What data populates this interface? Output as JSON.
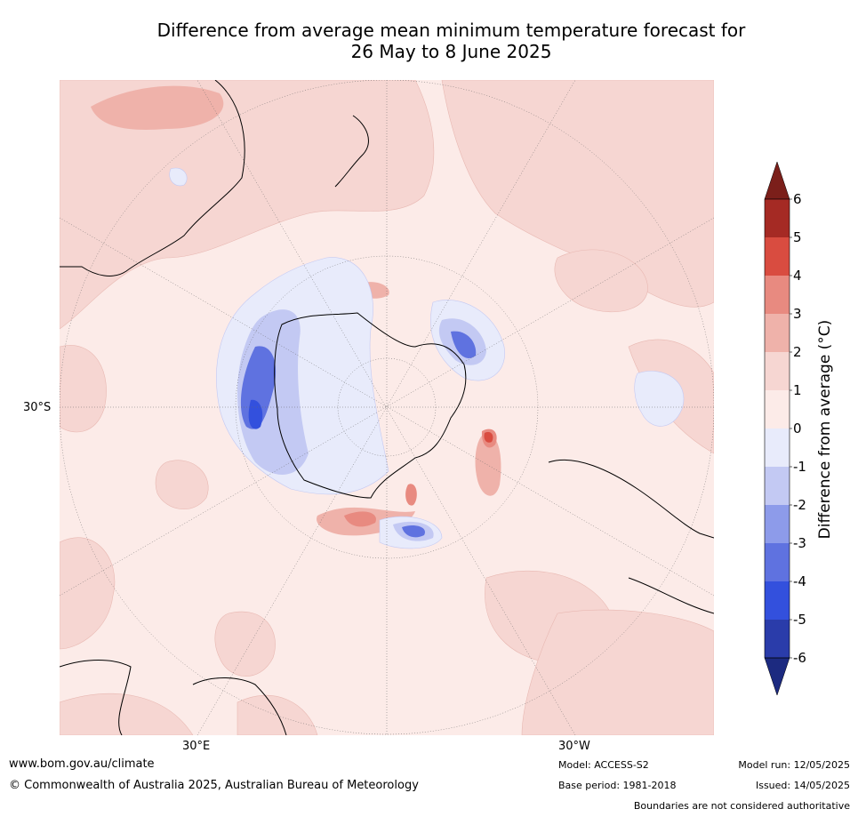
{
  "title": {
    "line1": "Difference from average mean minimum temperature forecast for",
    "line2": "26 May to 8 June 2025"
  },
  "map": {
    "projection": "south-polar stereographic",
    "labels": {
      "lat_30s": "30°S",
      "lon_30e": "30°E",
      "lon_30w": "30°W"
    }
  },
  "colorbar": {
    "title": "Difference from average (°C)",
    "ticks": [
      "6",
      "5",
      "4",
      "3",
      "2",
      "1",
      "0",
      "-1",
      "-2",
      "-3",
      "-4",
      "-5",
      "-6"
    ],
    "colors_top_to_bottom": [
      "#a52a24",
      "#d94c40",
      "#e88a80",
      "#efb2aa",
      "#f6d6d2",
      "#fcebe8",
      "#e8ebfb",
      "#c3c9f3",
      "#8d9bea",
      "#5f72e0",
      "#3350dd",
      "#2a3caa"
    ],
    "extend_max_color": "#7b1f1a",
    "extend_min_color": "#1c2a80"
  },
  "footer": {
    "url": "www.bom.gov.au/climate",
    "copyright": "© Commonwealth of Australia 2025, Australian Bureau of Meteorology",
    "model": "Model: ACCESS-S2",
    "base_period": "Base period: 1981-2018",
    "model_run": "Model run: 12/05/2025",
    "issued": "Issued: 14/05/2025",
    "disclaimer": "Boundaries are not considered authoritative"
  }
}
